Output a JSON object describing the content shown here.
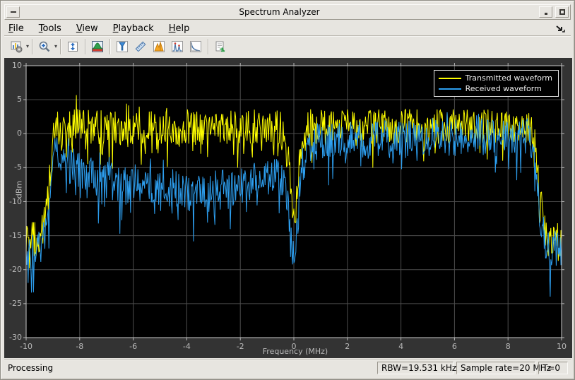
{
  "window": {
    "title": "Spectrum Analyzer"
  },
  "menu": {
    "items": [
      {
        "label": "File",
        "mnemonic": 0
      },
      {
        "label": "Tools",
        "mnemonic": 0
      },
      {
        "label": "View",
        "mnemonic": 0
      },
      {
        "label": "Playback",
        "mnemonic": 0
      },
      {
        "label": "Help",
        "mnemonic": 0
      }
    ]
  },
  "toolbar": {
    "icons": [
      "spectrum-settings-icon",
      "zoom-icon",
      "autoscale-y-icon",
      "spectrum-view-icon",
      "cursor-measurements-icon",
      "ruler-icon",
      "peak-finder-icon",
      "distortion-measurements-icon",
      "ccdf-measurements-icon",
      "export-icon",
      "dock-icon",
      "window-menu-icon",
      "minimize-icon",
      "maximize-icon"
    ]
  },
  "status": {
    "processing": "Processing",
    "rbw": "RBW=19.531 kHz",
    "sample_rate": "Sample rate=20 MHz",
    "time": "T=0"
  },
  "colors": {
    "chrome": "#e7e5e0",
    "figure_bg": "#333333",
    "axes_bg": "#000000",
    "grid": "#4d4d4d",
    "axis_box": "#c9c9c9",
    "tick_text": "#b9b9b9",
    "transmitted": "#ffff00",
    "received": "#2d9ff0"
  },
  "chart_data": {
    "type": "line",
    "title": "",
    "xlabel": "Frequency (MHz)",
    "ylabel": "dBm",
    "xlim": [
      -10,
      10
    ],
    "ylim": [
      -30,
      10
    ],
    "xticks": [
      -10,
      -8,
      -6,
      -4,
      -2,
      0,
      2,
      4,
      6,
      8,
      10
    ],
    "yticks": [
      10,
      5,
      0,
      -5,
      -10,
      -15,
      -20,
      -25,
      -30
    ],
    "grid": true,
    "legend_position": "top-right",
    "x_step": 0.025,
    "series": [
      {
        "name": "Transmitted waveform",
        "color": "#ffff00",
        "seed": 1234,
        "jitter": 2.6,
        "dip_prob": 0.16,
        "dip_amp": 4.5,
        "up_prob": 0.07,
        "up_amp": 2.2,
        "envelope": [
          [
            -10,
            -15.5
          ],
          [
            -9.4,
            -15.5
          ],
          [
            -9.15,
            -8
          ],
          [
            -9.0,
            -0.5
          ],
          [
            -8.8,
            1
          ],
          [
            -0.5,
            1
          ],
          [
            -0.2,
            -4
          ],
          [
            -0.07,
            -11
          ],
          [
            0,
            -12
          ],
          [
            0.07,
            -11
          ],
          [
            0.2,
            -4
          ],
          [
            0.5,
            1
          ],
          [
            8.8,
            1
          ],
          [
            9.0,
            -0.5
          ],
          [
            9.15,
            -8
          ],
          [
            9.4,
            -15.5
          ],
          [
            10,
            -15.5
          ]
        ]
      },
      {
        "name": "Received waveform",
        "color": "#2d9ff0",
        "seed": 5678,
        "jitter": 2.8,
        "dip_prob": 0.18,
        "dip_amp": 5.0,
        "up_prob": 0.07,
        "up_amp": 2.2,
        "envelope": [
          [
            -10,
            -17
          ],
          [
            -9.4,
            -17
          ],
          [
            -9.15,
            -10
          ],
          [
            -9.0,
            -3
          ],
          [
            -8.8,
            -2.5
          ],
          [
            -8.4,
            -4.5
          ],
          [
            -7.5,
            -6.5
          ],
          [
            -6.5,
            -7
          ],
          [
            -5.5,
            -7.5
          ],
          [
            -4.5,
            -8
          ],
          [
            -3.5,
            -8.5
          ],
          [
            -2.5,
            -8
          ],
          [
            -1.5,
            -7
          ],
          [
            -0.8,
            -6.5
          ],
          [
            -0.4,
            -6.5
          ],
          [
            -0.2,
            -10
          ],
          [
            -0.07,
            -16
          ],
          [
            0,
            -18
          ],
          [
            0.07,
            -16
          ],
          [
            0.2,
            -8
          ],
          [
            0.4,
            -2
          ],
          [
            1,
            -1
          ],
          [
            4,
            -0.5
          ],
          [
            8.8,
            -0.5
          ],
          [
            9.0,
            -3
          ],
          [
            9.15,
            -10
          ],
          [
            9.4,
            -17
          ],
          [
            10,
            -17
          ]
        ]
      }
    ]
  }
}
